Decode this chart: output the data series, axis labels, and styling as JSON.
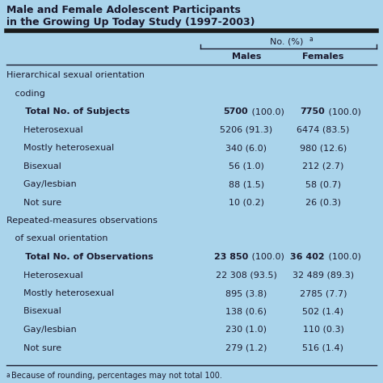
{
  "title_line1": "Male and Female Adolescent Participants",
  "title_line2": "in the Growing Up Today Study (1997-2003)",
  "bg_color": "#aad4eb",
  "footnote_a": "a",
  "footnote_text": "Because of rounding, percentages may not total 100.",
  "no_pct_label": "No. (%)",
  "no_pct_super": "a",
  "col_males": "Males",
  "col_females": "Females",
  "rows": [
    {
      "label": "Hierarchical sexual orientation",
      "indent": 0,
      "bold": false,
      "males": "",
      "females": "",
      "males_bold_part": "",
      "females_bold_part": ""
    },
    {
      "label": "   coding",
      "indent": 0,
      "bold": false,
      "males": "",
      "females": "",
      "males_bold_part": "",
      "females_bold_part": ""
    },
    {
      "label": "      Total No. of Subjects",
      "indent": 2,
      "bold": true,
      "males": " (100.0)",
      "females": " (100.0)",
      "males_bold_part": "5700",
      "females_bold_part": "7750"
    },
    {
      "label": "      Heterosexual",
      "indent": 2,
      "bold": false,
      "males": "5206 (91.3)",
      "females": "6474 (83.5)",
      "males_bold_part": "",
      "females_bold_part": ""
    },
    {
      "label": "      Mostly heterosexual",
      "indent": 2,
      "bold": false,
      "males": "340 (6.0)",
      "females": "980 (12.6)",
      "males_bold_part": "",
      "females_bold_part": ""
    },
    {
      "label": "      Bisexual",
      "indent": 2,
      "bold": false,
      "males": "56 (1.0)",
      "females": "212 (2.7)",
      "males_bold_part": "",
      "females_bold_part": ""
    },
    {
      "label": "      Gay/lesbian",
      "indent": 2,
      "bold": false,
      "males": "88 (1.5)",
      "females": "58 (0.7)",
      "males_bold_part": "",
      "females_bold_part": ""
    },
    {
      "label": "      Not sure",
      "indent": 2,
      "bold": false,
      "males": "10 (0.2)",
      "females": "26 (0.3)",
      "males_bold_part": "",
      "females_bold_part": ""
    },
    {
      "label": "Repeated-measures observations",
      "indent": 0,
      "bold": false,
      "males": "",
      "females": "",
      "males_bold_part": "",
      "females_bold_part": ""
    },
    {
      "label": "   of sexual orientation",
      "indent": 0,
      "bold": false,
      "males": "",
      "females": "",
      "males_bold_part": "",
      "females_bold_part": ""
    },
    {
      "label": "      Total No. of Observations",
      "indent": 2,
      "bold": true,
      "males": " (100.0)",
      "females": " (100.0)",
      "males_bold_part": "23 850",
      "females_bold_part": "36 402"
    },
    {
      "label": "      Heterosexual",
      "indent": 2,
      "bold": false,
      "males": "22 308 (93.5)",
      "females": "32 489 (89.3)",
      "males_bold_part": "",
      "females_bold_part": ""
    },
    {
      "label": "      Mostly heterosexual",
      "indent": 2,
      "bold": false,
      "males": "895 (3.8)",
      "females": "2785 (7.7)",
      "males_bold_part": "",
      "females_bold_part": ""
    },
    {
      "label": "      Bisexual",
      "indent": 2,
      "bold": false,
      "males": "138 (0.6)",
      "females": "502 (1.4)",
      "males_bold_part": "",
      "females_bold_part": ""
    },
    {
      "label": "      Gay/lesbian",
      "indent": 2,
      "bold": false,
      "males": "230 (1.0)",
      "females": "110 (0.3)",
      "males_bold_part": "",
      "females_bold_part": ""
    },
    {
      "label": "      Not sure",
      "indent": 2,
      "bold": false,
      "males": "279 (1.2)",
      "females": "516 (1.4)",
      "males_bold_part": "",
      "females_bold_part": ""
    }
  ]
}
